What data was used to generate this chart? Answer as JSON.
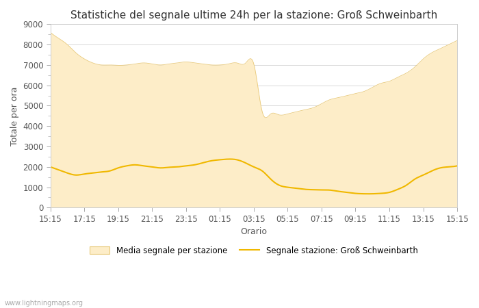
{
  "title": "Statistiche del segnale ultime 24h per la stazione: Groß Schweinbarth",
  "xlabel": "Orario",
  "ylabel": "Totale per ora",
  "watermark": "www.lightningmaps.org",
  "xtick_labels": [
    "15:15",
    "17:15",
    "19:15",
    "21:15",
    "23:15",
    "01:15",
    "03:15",
    "05:15",
    "07:15",
    "09:15",
    "11:15",
    "13:15",
    "15:15"
  ],
  "ylim": [
    0,
    9000
  ],
  "yticks": [
    0,
    1000,
    2000,
    3000,
    4000,
    5000,
    6000,
    7000,
    8000,
    9000
  ],
  "legend_labels": [
    "Media segnale per stazione",
    "Segnale stazione: Groß Schweinbarth"
  ],
  "fill_color": "#fdedc8",
  "fill_edge_color": "#e8c97a",
  "line_color": "#f0b800",
  "background_color": "#ffffff",
  "grid_color": "#d8d8d8",
  "title_fontsize": 11,
  "axis_fontsize": 9,
  "tick_fontsize": 8.5,
  "fill_top_x": [
    0,
    1,
    2,
    3,
    4,
    5,
    6,
    7,
    8,
    9,
    10,
    11,
    12,
    13,
    14,
    15,
    16,
    17,
    18,
    19,
    20,
    21,
    22,
    23,
    24,
    25,
    26,
    27,
    28,
    29,
    30,
    31,
    32,
    33,
    34,
    35,
    36,
    37,
    38,
    39,
    40,
    41,
    42,
    43,
    44,
    45,
    46,
    47,
    48
  ],
  "fill_top_y": [
    8600,
    8300,
    8000,
    7600,
    7300,
    7100,
    7000,
    7000,
    6980,
    7000,
    7050,
    7100,
    7050,
    7000,
    7050,
    7100,
    7150,
    7100,
    7050,
    7000,
    7000,
    7050,
    7100,
    7080,
    7050,
    4700,
    4600,
    4550,
    4600,
    4700,
    4800,
    4900,
    5100,
    5300,
    5400,
    5500,
    5600,
    5700,
    5900,
    6100,
    6200,
    6400,
    6600,
    6900,
    7300,
    7600,
    7800,
    8000,
    8200
  ],
  "line_x": [
    0,
    1,
    2,
    3,
    4,
    5,
    6,
    7,
    8,
    9,
    10,
    11,
    12,
    13,
    14,
    15,
    16,
    17,
    18,
    19,
    20,
    21,
    22,
    23,
    24,
    25,
    26,
    27,
    28,
    29,
    30,
    31,
    32,
    33,
    34,
    35,
    36,
    37,
    38,
    39,
    40,
    41,
    42,
    43,
    44,
    45,
    46,
    47,
    48
  ],
  "line_y": [
    2000,
    1850,
    1700,
    1600,
    1650,
    1700,
    1750,
    1800,
    1950,
    2050,
    2100,
    2050,
    2000,
    1950,
    1980,
    2000,
    2050,
    2100,
    2200,
    2300,
    2350,
    2380,
    2350,
    2200,
    2000,
    1800,
    1400,
    1100,
    1000,
    950,
    900,
    880,
    870,
    860,
    800,
    750,
    700,
    680,
    680,
    700,
    750,
    900,
    1100,
    1400,
    1600,
    1800,
    1950,
    2000,
    2050
  ]
}
